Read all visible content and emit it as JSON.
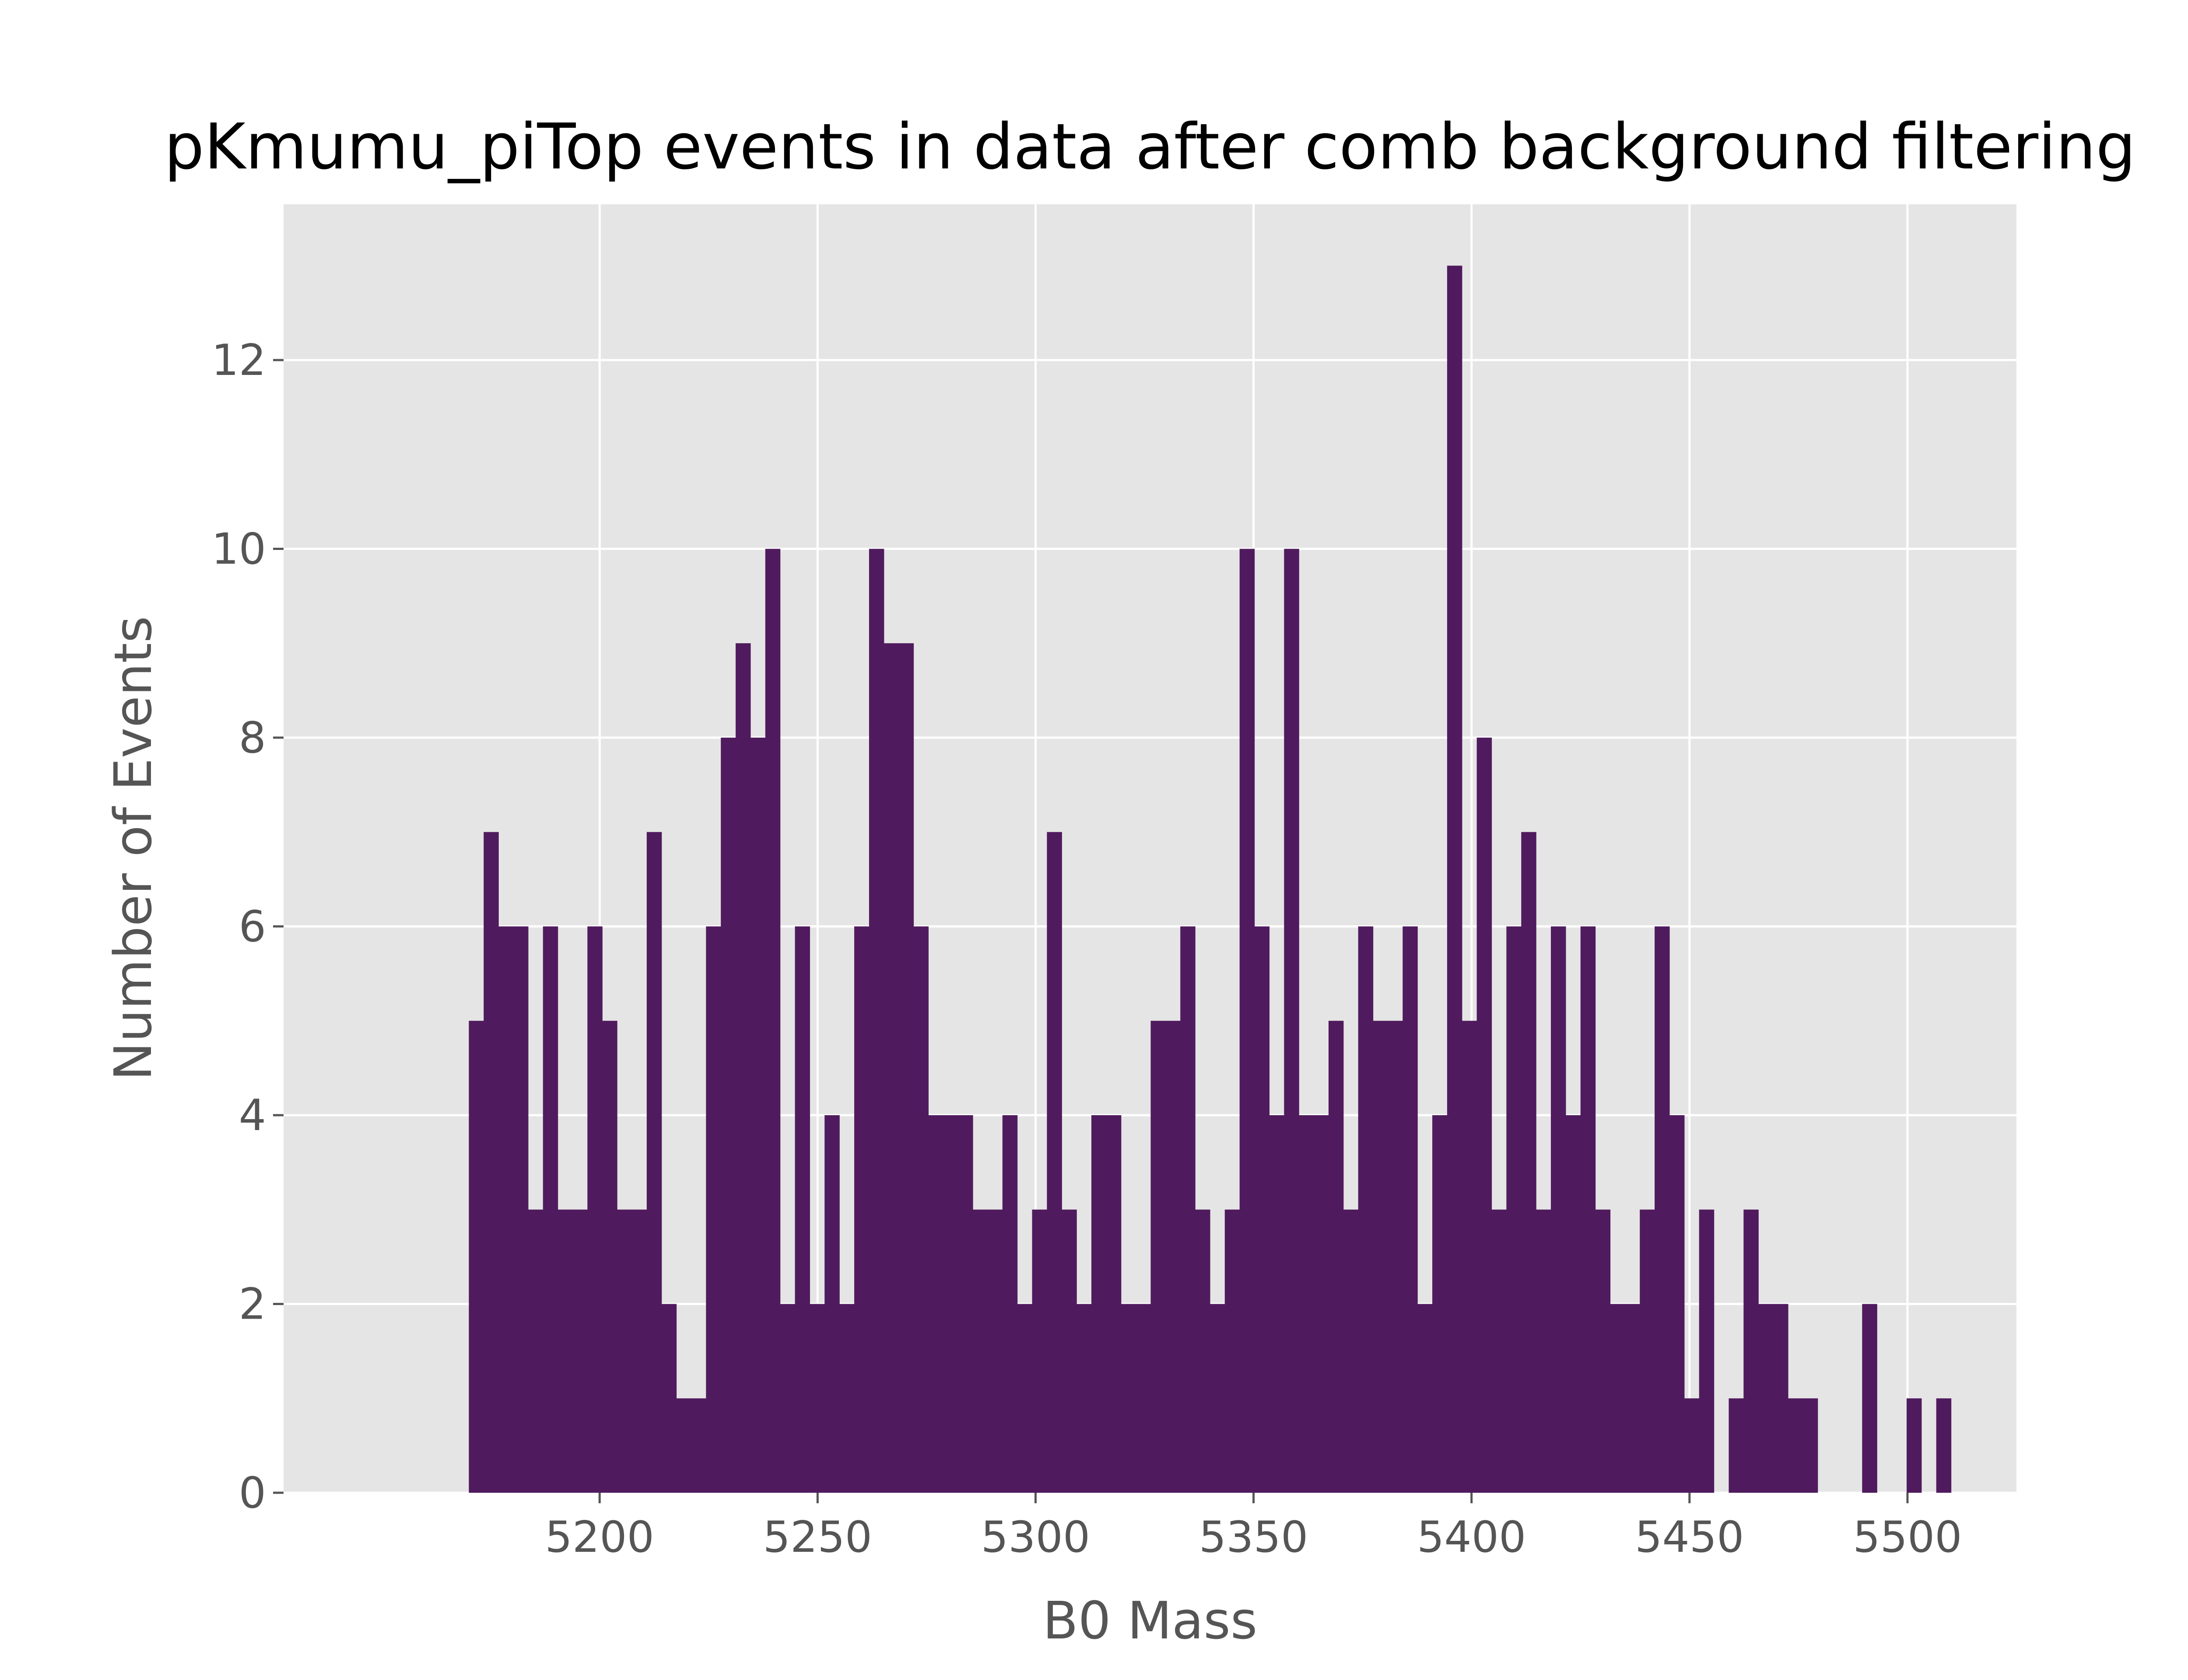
{
  "chart_data": {
    "type": "bar",
    "title": "pKmumu_piTop events in data after comb background filtering",
    "xlabel": "B0 Mass",
    "ylabel": "Number of Events",
    "xlim": [
      5127.5,
      5525
    ],
    "ylim": [
      0,
      13.65
    ],
    "grid": true,
    "xticks": [
      "5200",
      "5250",
      "5300",
      "5350",
      "5400",
      "5450",
      "5500"
    ],
    "yticks": [
      "0",
      "2",
      "4",
      "6",
      "8",
      "10",
      "12"
    ],
    "bin_start": 5170,
    "bin_width": 3.4,
    "values": [
      5,
      7,
      6,
      6,
      3,
      6,
      3,
      3,
      6,
      5,
      3,
      3,
      7,
      2,
      1,
      1,
      6,
      8,
      9,
      8,
      10,
      2,
      6,
      2,
      4,
      2,
      6,
      10,
      9,
      9,
      6,
      4,
      4,
      4,
      3,
      3,
      4,
      2,
      3,
      7,
      3,
      2,
      4,
      4,
      2,
      2,
      5,
      5,
      6,
      3,
      2,
      3,
      10,
      6,
      4,
      10,
      4,
      4,
      5,
      3,
      6,
      5,
      5,
      6,
      2,
      4,
      13,
      5,
      8,
      3,
      6,
      7,
      3,
      6,
      4,
      6,
      3,
      2,
      2,
      3,
      6,
      4,
      1,
      3,
      0,
      1,
      3,
      2,
      2,
      1,
      1,
      0,
      0,
      0,
      2,
      0,
      0,
      1,
      0,
      1
    ],
    "colors": {
      "bar": "#501b5e",
      "plot_background": "#e5e5e5",
      "grid": "#ffffff",
      "text": "#555555",
      "title": "#000000"
    }
  }
}
